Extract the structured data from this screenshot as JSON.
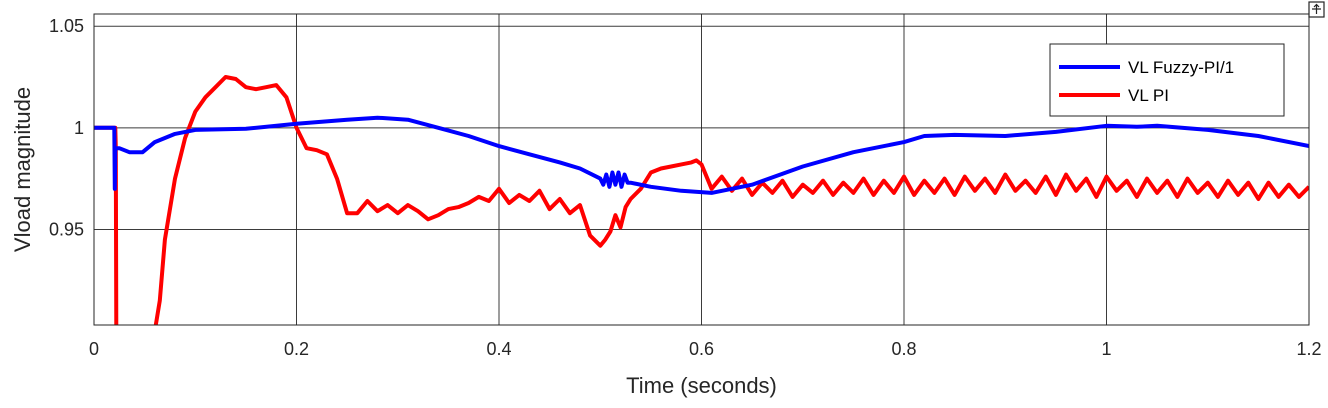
{
  "chart_data": {
    "type": "line",
    "xlabel": "Time (seconds)",
    "ylabel": "Vload magnitude",
    "xlim": [
      0,
      1.2
    ],
    "ylim": [
      0.903,
      1.056
    ],
    "xticks": [
      0,
      0.2,
      0.4,
      0.6,
      0.8,
      1,
      1.2
    ],
    "xtick_labels": [
      "0",
      "0.2",
      "0.4",
      "0.6",
      "0.8",
      "1",
      "1.2"
    ],
    "yticks": [
      0.95,
      1,
      1.05
    ],
    "ytick_labels": [
      "0.95",
      "1",
      "1.05"
    ],
    "grid": true,
    "legend_position": "top-right",
    "series": [
      {
        "name": "VL Fuzzy-PI/1",
        "color": "#0000ff",
        "x": [
          0,
          0.02,
          0.0205,
          0.021,
          0.023,
          0.025,
          0.035,
          0.048,
          0.06,
          0.08,
          0.1,
          0.15,
          0.2,
          0.25,
          0.28,
          0.31,
          0.34,
          0.37,
          0.4,
          0.43,
          0.46,
          0.48,
          0.5,
          0.503,
          0.506,
          0.509,
          0.512,
          0.515,
          0.518,
          0.521,
          0.524,
          0.527,
          0.53,
          0.55,
          0.58,
          0.61,
          0.65,
          0.7,
          0.75,
          0.8,
          0.82,
          0.85,
          0.9,
          0.95,
          1.0,
          1.03,
          1.05,
          1.1,
          1.15,
          1.2
        ],
        "y": [
          1.0,
          1.0,
          0.97,
          0.99,
          0.99,
          0.99,
          0.988,
          0.988,
          0.993,
          0.997,
          0.999,
          0.9995,
          1.002,
          1.004,
          1.005,
          1.004,
          1.0,
          0.996,
          0.991,
          0.987,
          0.983,
          0.98,
          0.975,
          0.972,
          0.977,
          0.971,
          0.978,
          0.972,
          0.978,
          0.971,
          0.977,
          0.973,
          0.973,
          0.971,
          0.969,
          0.968,
          0.972,
          0.981,
          0.988,
          0.993,
          0.996,
          0.9965,
          0.996,
          0.998,
          1.001,
          1.0005,
          1.001,
          0.999,
          0.996,
          0.991
        ]
      },
      {
        "name": "VL PI",
        "color": "#ff0000",
        "x": [
          0,
          0.021,
          0.0215,
          0.022,
          0.055,
          0.06,
          0.065,
          0.07,
          0.08,
          0.09,
          0.1,
          0.11,
          0.12,
          0.13,
          0.14,
          0.15,
          0.16,
          0.17,
          0.18,
          0.19,
          0.2,
          0.21,
          0.22,
          0.23,
          0.24,
          0.25,
          0.26,
          0.27,
          0.28,
          0.29,
          0.3,
          0.31,
          0.32,
          0.33,
          0.34,
          0.35,
          0.36,
          0.37,
          0.38,
          0.39,
          0.4,
          0.41,
          0.42,
          0.43,
          0.44,
          0.45,
          0.46,
          0.47,
          0.48,
          0.49,
          0.5,
          0.505,
          0.51,
          0.515,
          0.52,
          0.525,
          0.53,
          0.54,
          0.55,
          0.56,
          0.57,
          0.58,
          0.59,
          0.595,
          0.6,
          0.61,
          0.62,
          0.63,
          0.64,
          0.65,
          0.66,
          0.67,
          0.68,
          0.69,
          0.7,
          0.71,
          0.72,
          0.73,
          0.74,
          0.75,
          0.76,
          0.77,
          0.78,
          0.79,
          0.8,
          0.81,
          0.82,
          0.83,
          0.84,
          0.85,
          0.86,
          0.87,
          0.88,
          0.89,
          0.9,
          0.91,
          0.92,
          0.93,
          0.94,
          0.95,
          0.96,
          0.97,
          0.98,
          0.99,
          1.0,
          1.01,
          1.02,
          1.03,
          1.04,
          1.05,
          1.06,
          1.07,
          1.08,
          1.09,
          1.1,
          1.11,
          1.12,
          1.13,
          1.14,
          1.15,
          1.16,
          1.17,
          1.18,
          1.19,
          1.2
        ],
        "y": [
          1.0,
          1.0,
          0.99,
          0.9,
          0.9,
          0.9,
          0.915,
          0.945,
          0.975,
          0.995,
          1.008,
          1.015,
          1.02,
          1.025,
          1.024,
          1.02,
          1.019,
          1.02,
          1.021,
          1.015,
          1.0,
          0.99,
          0.989,
          0.987,
          0.975,
          0.958,
          0.958,
          0.964,
          0.959,
          0.962,
          0.958,
          0.962,
          0.959,
          0.955,
          0.957,
          0.96,
          0.961,
          0.963,
          0.966,
          0.964,
          0.97,
          0.963,
          0.967,
          0.964,
          0.969,
          0.96,
          0.965,
          0.958,
          0.962,
          0.947,
          0.942,
          0.945,
          0.949,
          0.957,
          0.951,
          0.961,
          0.965,
          0.97,
          0.978,
          0.98,
          0.981,
          0.982,
          0.983,
          0.984,
          0.982,
          0.97,
          0.976,
          0.969,
          0.975,
          0.967,
          0.973,
          0.968,
          0.974,
          0.966,
          0.972,
          0.968,
          0.974,
          0.967,
          0.973,
          0.968,
          0.975,
          0.967,
          0.974,
          0.968,
          0.976,
          0.967,
          0.974,
          0.968,
          0.975,
          0.967,
          0.976,
          0.969,
          0.975,
          0.968,
          0.977,
          0.969,
          0.974,
          0.968,
          0.976,
          0.967,
          0.977,
          0.969,
          0.975,
          0.966,
          0.976,
          0.969,
          0.974,
          0.966,
          0.975,
          0.968,
          0.974,
          0.966,
          0.975,
          0.968,
          0.973,
          0.966,
          0.974,
          0.967,
          0.973,
          0.965,
          0.973,
          0.966,
          0.972,
          0.966,
          0.971
        ]
      }
    ]
  }
}
